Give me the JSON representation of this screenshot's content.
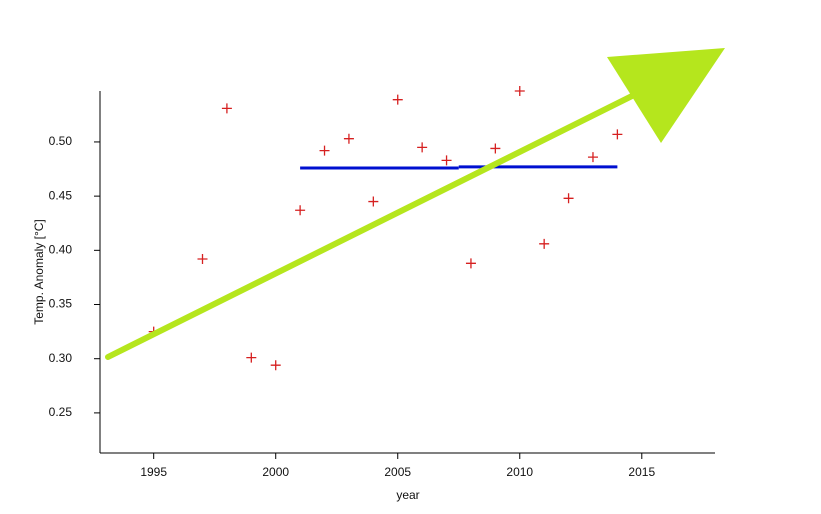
{
  "chart_data": {
    "type": "scatter",
    "x_label": "year",
    "y_label": "Temp. Anomaly [°C]",
    "xlim": [
      1992.8,
      2018
    ],
    "xticks": [
      1995,
      2000,
      2005,
      2010,
      2015
    ],
    "ylim": [
      0.213,
      0.547
    ],
    "yticks": [
      0.25,
      {
        "value": 0.3,
        "label": "0.30"
      },
      0.35,
      {
        "value": 0.4,
        "label": "0.40"
      },
      0.45,
      {
        "value": 0.5,
        "label": "0.50"
      }
    ],
    "grid": false,
    "series": [
      {
        "mode": "markers",
        "color": "#d62020",
        "x": [
          1995,
          1997,
          1998,
          1999,
          2000,
          2001,
          2002,
          2003,
          2004,
          2005,
          2006,
          2007,
          2008,
          2009,
          2010,
          2011,
          2012,
          2013,
          2014
        ],
        "values": [
          0.325,
          0.392,
          0.531,
          0.301,
          0.294,
          0.437,
          0.492,
          0.503,
          0.445,
          0.539,
          0.495,
          0.483,
          0.388,
          0.494,
          0.547,
          0.406,
          0.448,
          0.486,
          0.507
        ]
      },
      {
        "mode": "lines",
        "color": "#0010d0",
        "x": [
          2001,
          2007.5
        ],
        "values": [
          0.476,
          0.476
        ]
      },
      {
        "mode": "lines",
        "color": "#0010d0",
        "x": [
          2007.5,
          2014
        ],
        "values": [
          0.477,
          0.477
        ]
      }
    ]
  }
}
